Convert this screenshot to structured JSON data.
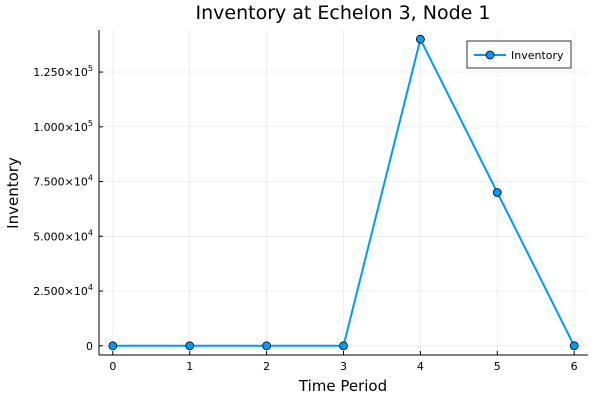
{
  "chart_data": {
    "type": "line",
    "title": "Inventory at Echelon 3, Node 1",
    "xlabel": "Time Period",
    "ylabel": "Inventory",
    "x": [
      0,
      1,
      2,
      3,
      4,
      5,
      6
    ],
    "series": [
      {
        "name": "Inventory",
        "values": [
          0,
          0,
          0,
          0,
          140000,
          70000,
          0
        ],
        "color": "#009AFA"
      }
    ],
    "xlim": [
      -0.18,
      6.18
    ],
    "ylim": [
      -4200,
      144200
    ],
    "xticks": [
      {
        "value": 0,
        "label": "0"
      },
      {
        "value": 1,
        "label": "1"
      },
      {
        "value": 2,
        "label": "2"
      },
      {
        "value": 3,
        "label": "3"
      },
      {
        "value": 4,
        "label": "4"
      },
      {
        "value": 5,
        "label": "5"
      },
      {
        "value": 6,
        "label": "6"
      }
    ],
    "yticks": [
      {
        "value": 0,
        "mantissa": "0",
        "exponent": ""
      },
      {
        "value": 25000,
        "mantissa": "2.500×10",
        "exponent": "4"
      },
      {
        "value": 50000,
        "mantissa": "5.000×10",
        "exponent": "4"
      },
      {
        "value": 75000,
        "mantissa": "7.500×10",
        "exponent": "4"
      },
      {
        "value": 100000,
        "mantissa": "1.000×10",
        "exponent": "5"
      },
      {
        "value": 125000,
        "mantissa": "1.250×10",
        "exponent": "5"
      }
    ],
    "grid": true,
    "legend_position": "top-right"
  }
}
